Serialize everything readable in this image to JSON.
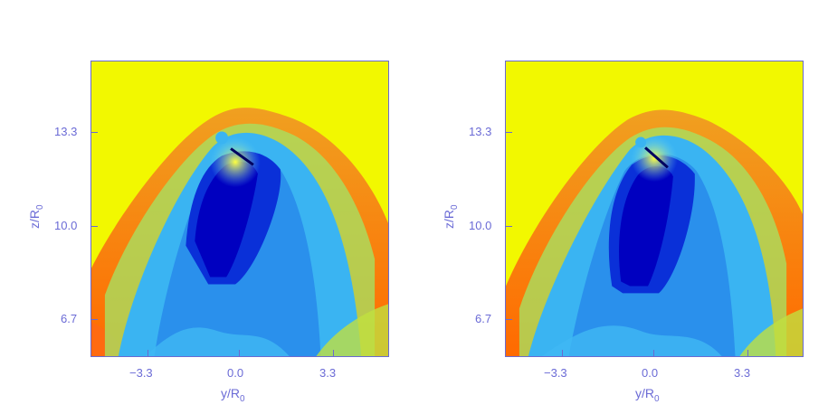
{
  "panels": [
    {
      "y_ticks": [
        "13.3",
        "10.0",
        "6.7"
      ],
      "x_ticks": [
        "−3.3",
        "0.0",
        "3.3"
      ],
      "ylabel": "z/R",
      "ylabel_sub": "0",
      "xlabel": "y/R",
      "xlabel_sub": "0"
    },
    {
      "y_ticks": [
        "13.3",
        "10.0",
        "6.7"
      ],
      "x_ticks": [
        "−3.3",
        "0.0",
        "3.3"
      ],
      "ylabel": "z/R",
      "ylabel_sub": "0",
      "xlabel": "y/R",
      "xlabel_sub": "0"
    }
  ],
  "colors": {
    "background_field": "#f2f800",
    "shell_outer": "#f7a81c",
    "shell_inner": "#ff7a10",
    "cavity_light": "#39b0f0",
    "cavity_mid": "#1f86ea",
    "cavity_dark": "#0000c8",
    "axis": "#6b6bd6"
  }
}
